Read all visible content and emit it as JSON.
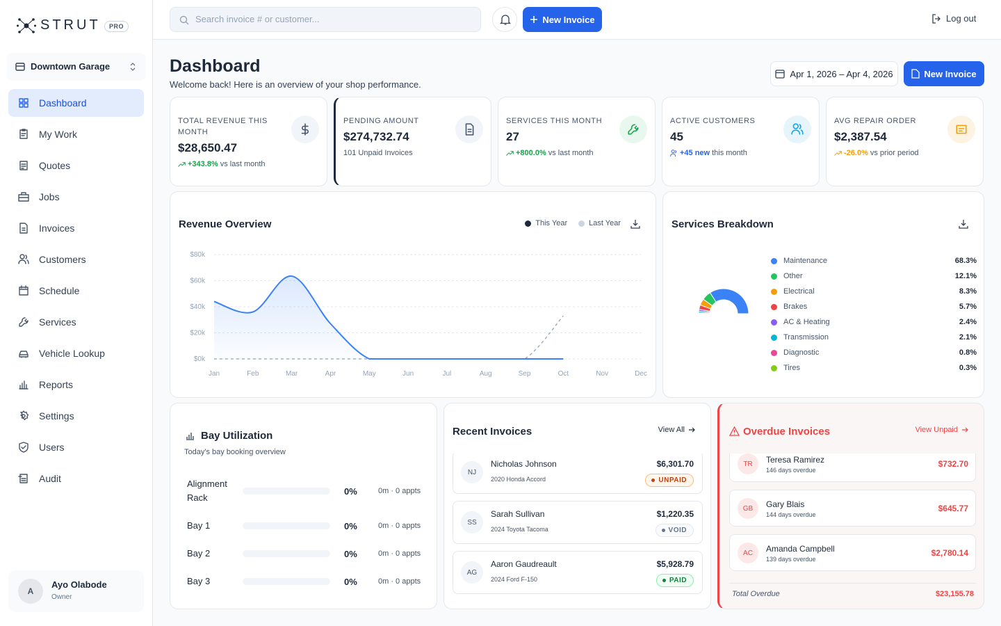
{
  "brand": {
    "name": "STRUT",
    "badge": "PRO"
  },
  "shop": "Downtown Garage",
  "nav": [
    "Dashboard",
    "My Work",
    "Quotes",
    "Jobs",
    "Invoices",
    "Customers",
    "Schedule",
    "Services",
    "Vehicle Lookup",
    "Reports",
    "Settings",
    "Users",
    "Audit"
  ],
  "user": {
    "initial": "A",
    "name": "Ayo Olabode",
    "role": "Owner"
  },
  "topbar": {
    "search_placeholder": "Search invoice # or customer...",
    "new_invoice": "New Invoice",
    "logout": "Log out"
  },
  "header": {
    "title": "Dashboard",
    "subtitle": "Welcome back! Here is an overview of your shop performance.",
    "date_range": "Apr 1, 2026 – Apr 4, 2026",
    "new_invoice": "New Invoice"
  },
  "kpis": [
    {
      "label": "TOTAL REVENUE THIS MONTH",
      "value": "$28,650.47",
      "change": "+343.8%",
      "note": "vs last month",
      "color": "#16a34a",
      "icon_bg": "#f1f5f9",
      "icon_color": "#475569"
    },
    {
      "label": "PENDING AMOUNT",
      "value": "$274,732.74",
      "note": "101 Unpaid Invoices",
      "icon_bg": "#f1f5f9",
      "icon_color": "#475569"
    },
    {
      "label": "SERVICES THIS MONTH",
      "value": "27",
      "change": "+800.0%",
      "note": "vs last month",
      "color": "#16a34a",
      "icon_bg": "#e8f8ef",
      "icon_color": "#16a34a"
    },
    {
      "label": "ACTIVE CUSTOMERS",
      "value": "45",
      "change": "+45 new",
      "note": "this month",
      "color": "#2563eb",
      "icon_bg": "#e6f4fb",
      "icon_color": "#0ea5e9"
    },
    {
      "label": "AVG REPAIR ORDER",
      "value": "$2,387.54",
      "change": "-26.0%",
      "note": "vs prior period",
      "color": "#f59e0b",
      "icon_bg": "#fdf3e3",
      "icon_color": "#f59e0b"
    }
  ],
  "chart_data": [
    {
      "type": "line",
      "title": "Revenue Overview",
      "categories": [
        "Jan",
        "Feb",
        "Mar",
        "Apr",
        "May",
        "Jun",
        "Jul",
        "Aug",
        "Sep",
        "Oct",
        "Nov",
        "Dec"
      ],
      "series": [
        {
          "name": "This Year",
          "color": "#3b82f6",
          "legend_color": "#1e293b",
          "values": [
            44000,
            36000,
            63500,
            27000,
            0,
            0,
            0,
            0,
            0,
            0,
            null,
            null
          ]
        },
        {
          "name": "Last Year",
          "color": "#94a3b8",
          "legend_color": "#cbd5e1",
          "dashed": true,
          "values": [
            0,
            0,
            0,
            0,
            0,
            0,
            0,
            0,
            0,
            33000,
            null,
            null
          ]
        }
      ],
      "ylim": [
        0,
        80000
      ],
      "yticks": [
        {
          "value": 0,
          "label": "$0k"
        },
        {
          "value": 20000,
          "label": "$20k"
        },
        {
          "value": 40000,
          "label": "$40k"
        },
        {
          "value": 60000,
          "label": "$60k"
        },
        {
          "value": 80000,
          "label": "$80k"
        }
      ],
      "grid": true
    },
    {
      "type": "pie",
      "title": "Services Breakdown",
      "categories": [
        "Maintenance",
        "Other",
        "Electrical",
        "Brakes",
        "AC & Heating",
        "Transmission",
        "Diagnostic",
        "Tires"
      ],
      "values": [
        68.3,
        12.1,
        8.3,
        5.7,
        2.4,
        2.1,
        0.8,
        0.3
      ],
      "value_labels": [
        "68.3%",
        "12.1%",
        "8.3%",
        "5.7%",
        "2.4%",
        "2.1%",
        "0.8%",
        "0.3%"
      ],
      "colors": [
        "#3b82f6",
        "#22c55e",
        "#f59e0b",
        "#ef4444",
        "#8b5cf6",
        "#06b6d4",
        "#ec4899",
        "#84cc16"
      ]
    }
  ],
  "bays": {
    "title": "Bay Utilization",
    "subtitle": "Today's bay booking overview",
    "rows": [
      {
        "name": "Alignment Rack",
        "pct": "0%",
        "meta": "0m · 0 appts"
      },
      {
        "name": "Bay 1",
        "pct": "0%",
        "meta": "0m · 0 appts"
      },
      {
        "name": "Bay 2",
        "pct": "0%",
        "meta": "0m · 0 appts"
      },
      {
        "name": "Bay 3",
        "pct": "0%",
        "meta": "0m · 0 appts"
      }
    ]
  },
  "recent": {
    "title": "Recent Invoices",
    "link": "View All",
    "rows": [
      {
        "initials": "NJ",
        "name": "Nicholas Johnson",
        "vehicle": "2020 Honda Accord",
        "amount": "$6,301.70",
        "status": "UNPAID",
        "status_color": "#c2410c",
        "status_bg": "#fff7ed",
        "status_border": "#fdba74"
      },
      {
        "initials": "SS",
        "name": "Sarah Sullivan",
        "vehicle": "2024 Toyota Tacoma",
        "amount": "$1,220.35",
        "status": "VOID",
        "status_color": "#64748b",
        "status_bg": "#f8fafc",
        "status_border": "#e2e8f0"
      },
      {
        "initials": "AG",
        "name": "Aaron Gaudreault",
        "vehicle": "2024 Ford F-150",
        "amount": "$5,928.79",
        "status": "PAID",
        "status_color": "#15803d",
        "status_bg": "#f0fdf4",
        "status_border": "#86efac"
      }
    ]
  },
  "overdue": {
    "title": "Overdue Invoices",
    "link": "View Unpaid",
    "rows": [
      {
        "initials": "TR",
        "name": "Teresa Ramirez",
        "days": "146 days overdue",
        "amount": "$732.70"
      },
      {
        "initials": "GB",
        "name": "Gary Blais",
        "days": "144 days overdue",
        "amount": "$645.77"
      },
      {
        "initials": "AC",
        "name": "Amanda Campbell",
        "days": "139 days overdue",
        "amount": "$2,780.14"
      }
    ],
    "total_label": "Total Overdue",
    "total": "$23,155.78"
  }
}
